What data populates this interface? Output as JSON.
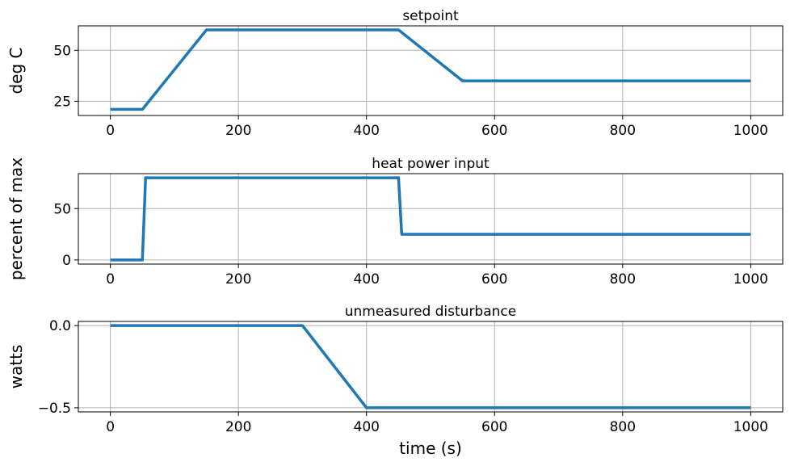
{
  "figure": {
    "xlabel": "time (s)",
    "line_color": "#1f77b4"
  },
  "chart_data": [
    {
      "type": "line",
      "title": "setpoint",
      "xlabel": "",
      "ylabel": "deg C",
      "xlim": [
        -50,
        1050
      ],
      "ylim": [
        18,
        62
      ],
      "xticks": [
        0,
        200,
        400,
        600,
        800,
        1000
      ],
      "yticks": [
        25,
        50
      ],
      "ytick_labels": [
        "25",
        "50"
      ],
      "grid": true,
      "series": [
        {
          "x": [
            0,
            50,
            150,
            450,
            550,
            1000
          ],
          "y": [
            21,
            21,
            60,
            60,
            35,
            35
          ]
        }
      ]
    },
    {
      "type": "line",
      "title": "heat power input",
      "xlabel": "",
      "ylabel": "percent of max",
      "xlim": [
        -50,
        1050
      ],
      "ylim": [
        -4,
        84
      ],
      "xticks": [
        0,
        200,
        400,
        600,
        800,
        1000
      ],
      "yticks": [
        0,
        50
      ],
      "ytick_labels": [
        "0",
        "50"
      ],
      "grid": true,
      "series": [
        {
          "x": [
            0,
            50,
            55,
            450,
            455,
            1000
          ],
          "y": [
            0,
            0,
            80,
            80,
            25,
            25
          ]
        }
      ]
    },
    {
      "type": "line",
      "title": "unmeasured disturbance",
      "xlabel": "time (s)",
      "ylabel": "watts",
      "xlim": [
        -50,
        1050
      ],
      "ylim": [
        -0.525,
        0.025
      ],
      "xticks": [
        0,
        200,
        400,
        600,
        800,
        1000
      ],
      "yticks": [
        0.0,
        -0.5
      ],
      "ytick_labels": [
        "0.0",
        "−0.5"
      ],
      "grid": true,
      "series": [
        {
          "x": [
            0,
            300,
            400,
            1000
          ],
          "y": [
            0,
            0,
            -0.5,
            -0.5
          ]
        }
      ]
    }
  ]
}
